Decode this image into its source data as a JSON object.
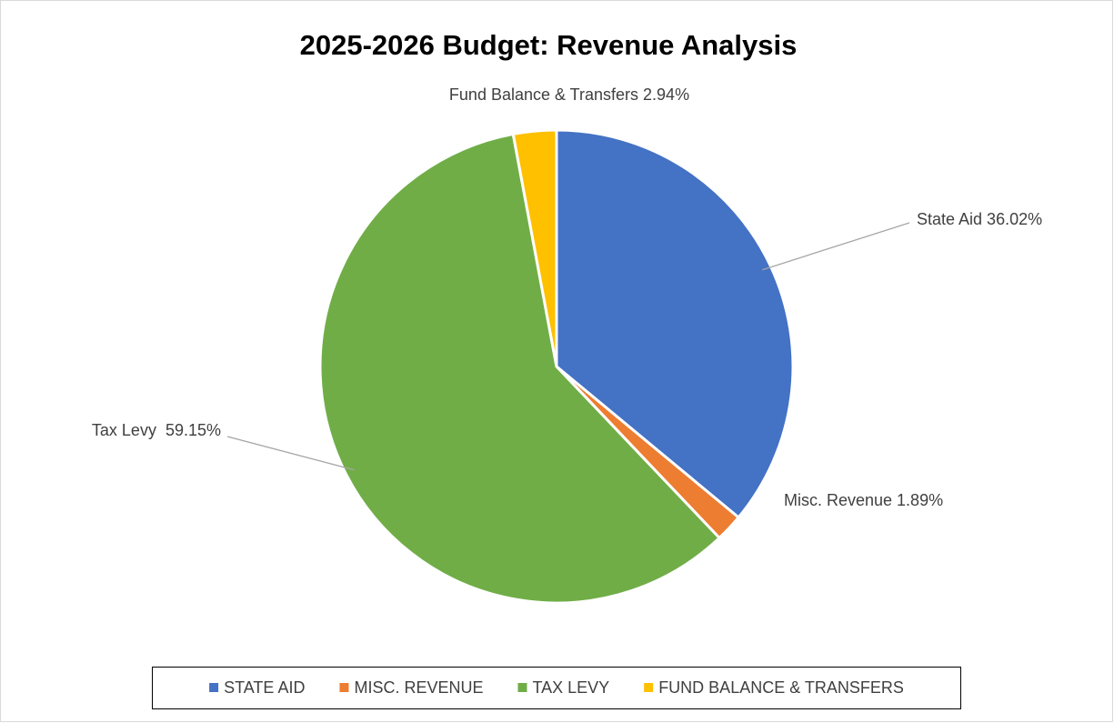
{
  "chart_data": {
    "type": "pie",
    "title": "2025-2026 Budget: Revenue Analysis",
    "categories": [
      "STATE AID",
      "MISC. REVENUE",
      "TAX LEVY",
      "FUND BALANCE & TRANSFERS"
    ],
    "values": [
      36.02,
      1.89,
      59.15,
      2.94
    ],
    "value_labels": [
      "State Aid 36.02%",
      "Misc. Revenue 1.89%",
      "Tax Levy  59.15%",
      "Fund Balance & Transfers 2.94%"
    ],
    "colors": [
      "#4472c4",
      "#ed7d31",
      "#70ad47",
      "#ffc000"
    ],
    "legend": "bottom"
  }
}
